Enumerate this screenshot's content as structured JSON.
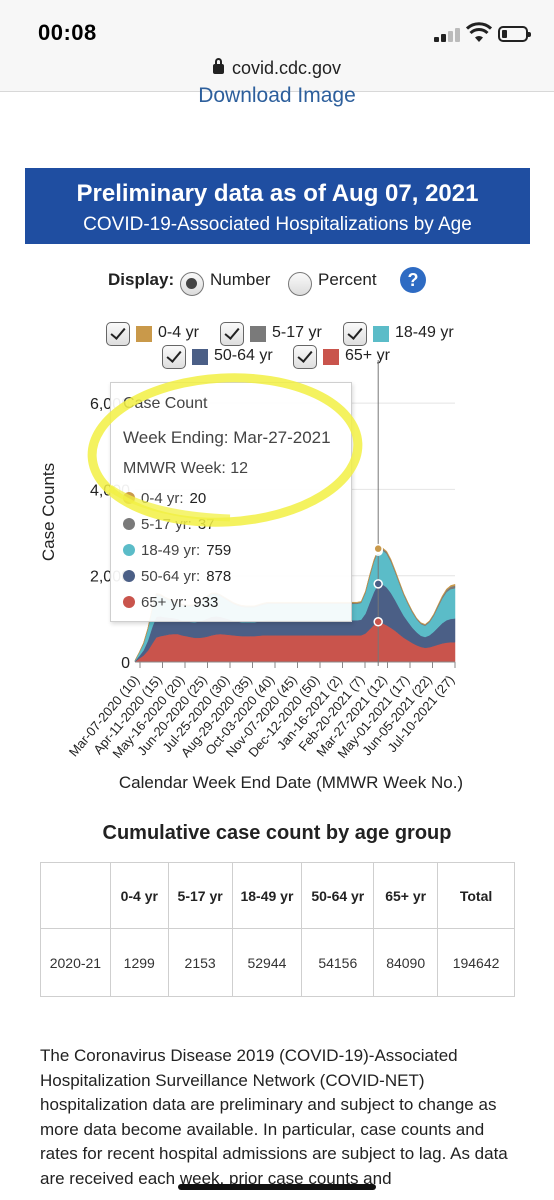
{
  "status_bar": {
    "time": "00:08",
    "url": "covid.cdc.gov"
  },
  "download_link": "Download Image",
  "banner": {
    "title": "Preliminary data as of Aug 07, 2021",
    "subtitle": "COVID-19-Associated Hospitalizations by Age"
  },
  "display": {
    "label": "Display:",
    "options": [
      "Number",
      "Percent"
    ],
    "selected": "Number",
    "help": "?"
  },
  "legend": [
    {
      "label": "0-4 yr",
      "color": "#c9994a"
    },
    {
      "label": "5-17 yr",
      "color": "#7a7a7a"
    },
    {
      "label": "18-49 yr",
      "color": "#5bbcc8"
    },
    {
      "label": "50-64 yr",
      "color": "#4b5f86"
    },
    {
      "label": "65+ yr",
      "color": "#c9544c"
    }
  ],
  "tooltip": {
    "title": "Case Count",
    "week_ending": "Week Ending: Mar-27-2021",
    "mmwr_week": "MMWR Week: 12",
    "rows": [
      {
        "label": "0-4 yr:",
        "value": "20",
        "color": "#c9994a"
      },
      {
        "label": "5-17 yr:",
        "value": "37",
        "color": "#7a7a7a"
      },
      {
        "label": "18-49 yr:",
        "value": "759",
        "color": "#5bbcc8"
      },
      {
        "label": "50-64 yr:",
        "value": "878",
        "color": "#4b5f86"
      },
      {
        "label": "65+ yr:",
        "value": "933",
        "color": "#c9544c"
      }
    ]
  },
  "chart_data": {
    "type": "area",
    "stacked": true,
    "title": "",
    "ylabel": "Case Counts",
    "xlabel": "Calendar Week End Date (MMWR Week No.)",
    "ylim": [
      0,
      7000
    ],
    "yticks": [
      0,
      2000,
      4000,
      6000
    ],
    "ytick_labels": [
      "0",
      "2,000",
      "4,000",
      "6,000"
    ],
    "xticks": [
      "Mar-07-2020 (10)",
      "Apr-11-2020 (15)",
      "May-16-2020 (20)",
      "Jun-20-2020 (25)",
      "Jul-25-2020 (30)",
      "Aug-29-2020 (35)",
      "Oct-03-2020 (40)",
      "Nov-07-2020 (45)",
      "Dec-12-2020 (50)",
      "Jan-16-2021 (2)",
      "Feb-20-2021 (7)",
      "Mar-27-2021 (12)",
      "May-01-2021 (17)",
      "Jun-05-2021 (22)",
      "Jul-10-2021 (27)"
    ],
    "x": [
      "Feb-22",
      "Feb-29",
      "Mar-07",
      "Mar-14",
      "Mar-21",
      "Mar-28",
      "Apr-04",
      "Apr-11",
      "Apr-18",
      "Apr-25",
      "May-02",
      "May-09",
      "May-16",
      "May-23",
      "May-30",
      "Jun-06",
      "Jun-13",
      "Jun-20",
      "Jun-27",
      "Jul-04",
      "Jul-11",
      "Jul-18",
      "Jul-25",
      "Aug-01",
      "Aug-08",
      "Aug-15",
      "Aug-22",
      "Aug-29",
      "Sep-05",
      "Sep-12",
      "Sep-19",
      "Sep-26",
      "Oct-03",
      "Oct-10",
      "Oct-17",
      "Oct-24",
      "Oct-31",
      "Nov-07",
      "Nov-14",
      "Nov-21",
      "Nov-28",
      "Dec-05",
      "Dec-12",
      "Dec-19",
      "Dec-26",
      "Jan-02",
      "Jan-09",
      "Jan-16",
      "Jan-23",
      "Jan-30",
      "Feb-06",
      "Feb-13",
      "Feb-20",
      "Feb-27",
      "Mar-06",
      "Mar-13",
      "Mar-20",
      "Mar-27",
      "Apr-03",
      "Apr-10",
      "Apr-17",
      "Apr-24",
      "May-01",
      "May-08",
      "May-15",
      "May-22",
      "May-29",
      "Jun-05",
      "Jun-12",
      "Jun-19",
      "Jun-26",
      "Jul-03",
      "Jul-10",
      "Jul-17",
      "Jul-24",
      "Jul-31"
    ],
    "series": [
      {
        "name": "0-4 yr",
        "values": [
          2,
          4,
          10,
          14,
          18,
          18,
          17,
          16,
          15,
          14,
          14,
          14,
          14,
          14,
          13,
          13,
          13,
          13,
          14,
          14,
          14,
          14,
          14,
          14,
          14,
          14,
          14,
          14,
          14,
          14,
          14,
          14,
          14,
          14,
          14,
          14,
          14,
          14,
          14,
          14,
          14,
          14,
          14,
          14,
          14,
          14,
          14,
          14,
          14,
          14,
          14,
          14,
          14,
          14,
          16,
          18,
          19,
          20,
          20,
          20,
          19,
          18,
          16,
          14,
          13,
          12,
          11,
          11,
          11,
          12,
          14,
          17,
          20,
          24,
          28,
          30
        ]
      },
      {
        "name": "5-17 yr",
        "values": [
          3,
          6,
          14,
          20,
          24,
          25,
          24,
          22,
          21,
          20,
          20,
          20,
          20,
          20,
          20,
          20,
          20,
          20,
          21,
          21,
          21,
          21,
          21,
          21,
          21,
          21,
          21,
          21,
          21,
          21,
          21,
          21,
          21,
          21,
          21,
          21,
          21,
          21,
          21,
          21,
          21,
          21,
          21,
          21,
          21,
          21,
          21,
          21,
          21,
          21,
          21,
          21,
          21,
          21,
          25,
          29,
          33,
          37,
          38,
          39,
          38,
          35,
          32,
          28,
          26,
          24,
          22,
          22,
          22,
          24,
          28,
          34,
          40,
          48,
          56,
          60
        ]
      },
      {
        "name": "18-49 yr",
        "values": [
          15,
          80,
          150,
          260,
          400,
          500,
          470,
          430,
          400,
          380,
          360,
          350,
          350,
          360,
          380,
          420,
          460,
          500,
          520,
          510,
          480,
          450,
          420,
          390,
          370,
          360,
          350,
          350,
          350,
          360,
          370,
          380,
          380,
          380,
          380,
          380,
          380,
          380,
          380,
          380,
          380,
          380,
          380,
          380,
          380,
          380,
          380,
          380,
          380,
          380,
          380,
          380,
          380,
          390,
          480,
          600,
          700,
          759,
          790,
          780,
          720,
          640,
          560,
          480,
          410,
          350,
          300,
          270,
          260,
          300,
          370,
          470,
          570,
          650,
          690,
          700
        ]
      },
      {
        "name": "50-64 yr",
        "values": [
          10,
          60,
          120,
          230,
          380,
          480,
          460,
          420,
          390,
          370,
          350,
          340,
          340,
          350,
          360,
          380,
          400,
          420,
          430,
          420,
          400,
          380,
          360,
          340,
          330,
          320,
          320,
          320,
          320,
          330,
          340,
          350,
          350,
          350,
          350,
          350,
          350,
          350,
          350,
          350,
          350,
          350,
          350,
          350,
          350,
          350,
          350,
          350,
          350,
          350,
          350,
          350,
          350,
          360,
          460,
          620,
          760,
          878,
          900,
          880,
          810,
          710,
          610,
          510,
          430,
          360,
          300,
          260,
          250,
          280,
          330,
          400,
          470,
          520,
          540,
          550
        ]
      },
      {
        "name": "65+ yr",
        "values": [
          10,
          80,
          150,
          260,
          420,
          570,
          600,
          620,
          640,
          650,
          650,
          620,
          600,
          580,
          560,
          560,
          570,
          590,
          620,
          640,
          650,
          640,
          630,
          620,
          610,
          600,
          600,
          600,
          600,
          610,
          620,
          620,
          620,
          620,
          620,
          620,
          620,
          620,
          620,
          620,
          620,
          620,
          620,
          620,
          620,
          620,
          620,
          620,
          620,
          620,
          620,
          620,
          620,
          620,
          660,
          760,
          860,
          933,
          900,
          850,
          790,
          720,
          640,
          560,
          500,
          440,
          390,
          350,
          330,
          340,
          370,
          400,
          430,
          450,
          460,
          460
        ]
      }
    ],
    "highlight": "Mar-27",
    "grid": true
  },
  "cumulative": {
    "title": "Cumulative case count by age group",
    "headers": [
      "",
      "0-4 yr",
      "5-17 yr",
      "18-49 yr",
      "50-64 yr",
      "65+ yr",
      "Total"
    ],
    "rows": [
      [
        "2020-21",
        "1299",
        "2153",
        "52944",
        "54156",
        "84090",
        "194642"
      ]
    ]
  },
  "paragraph": "The Coronavirus Disease 2019 (COVID-19)-Associated Hospitalization Surveillance Network (COVID-NET) hospitalization data are preliminary and subject to change as more data become available. In particular, case counts and rates for recent hospital admissions are subject to lag. As data are received each week, prior case counts and"
}
